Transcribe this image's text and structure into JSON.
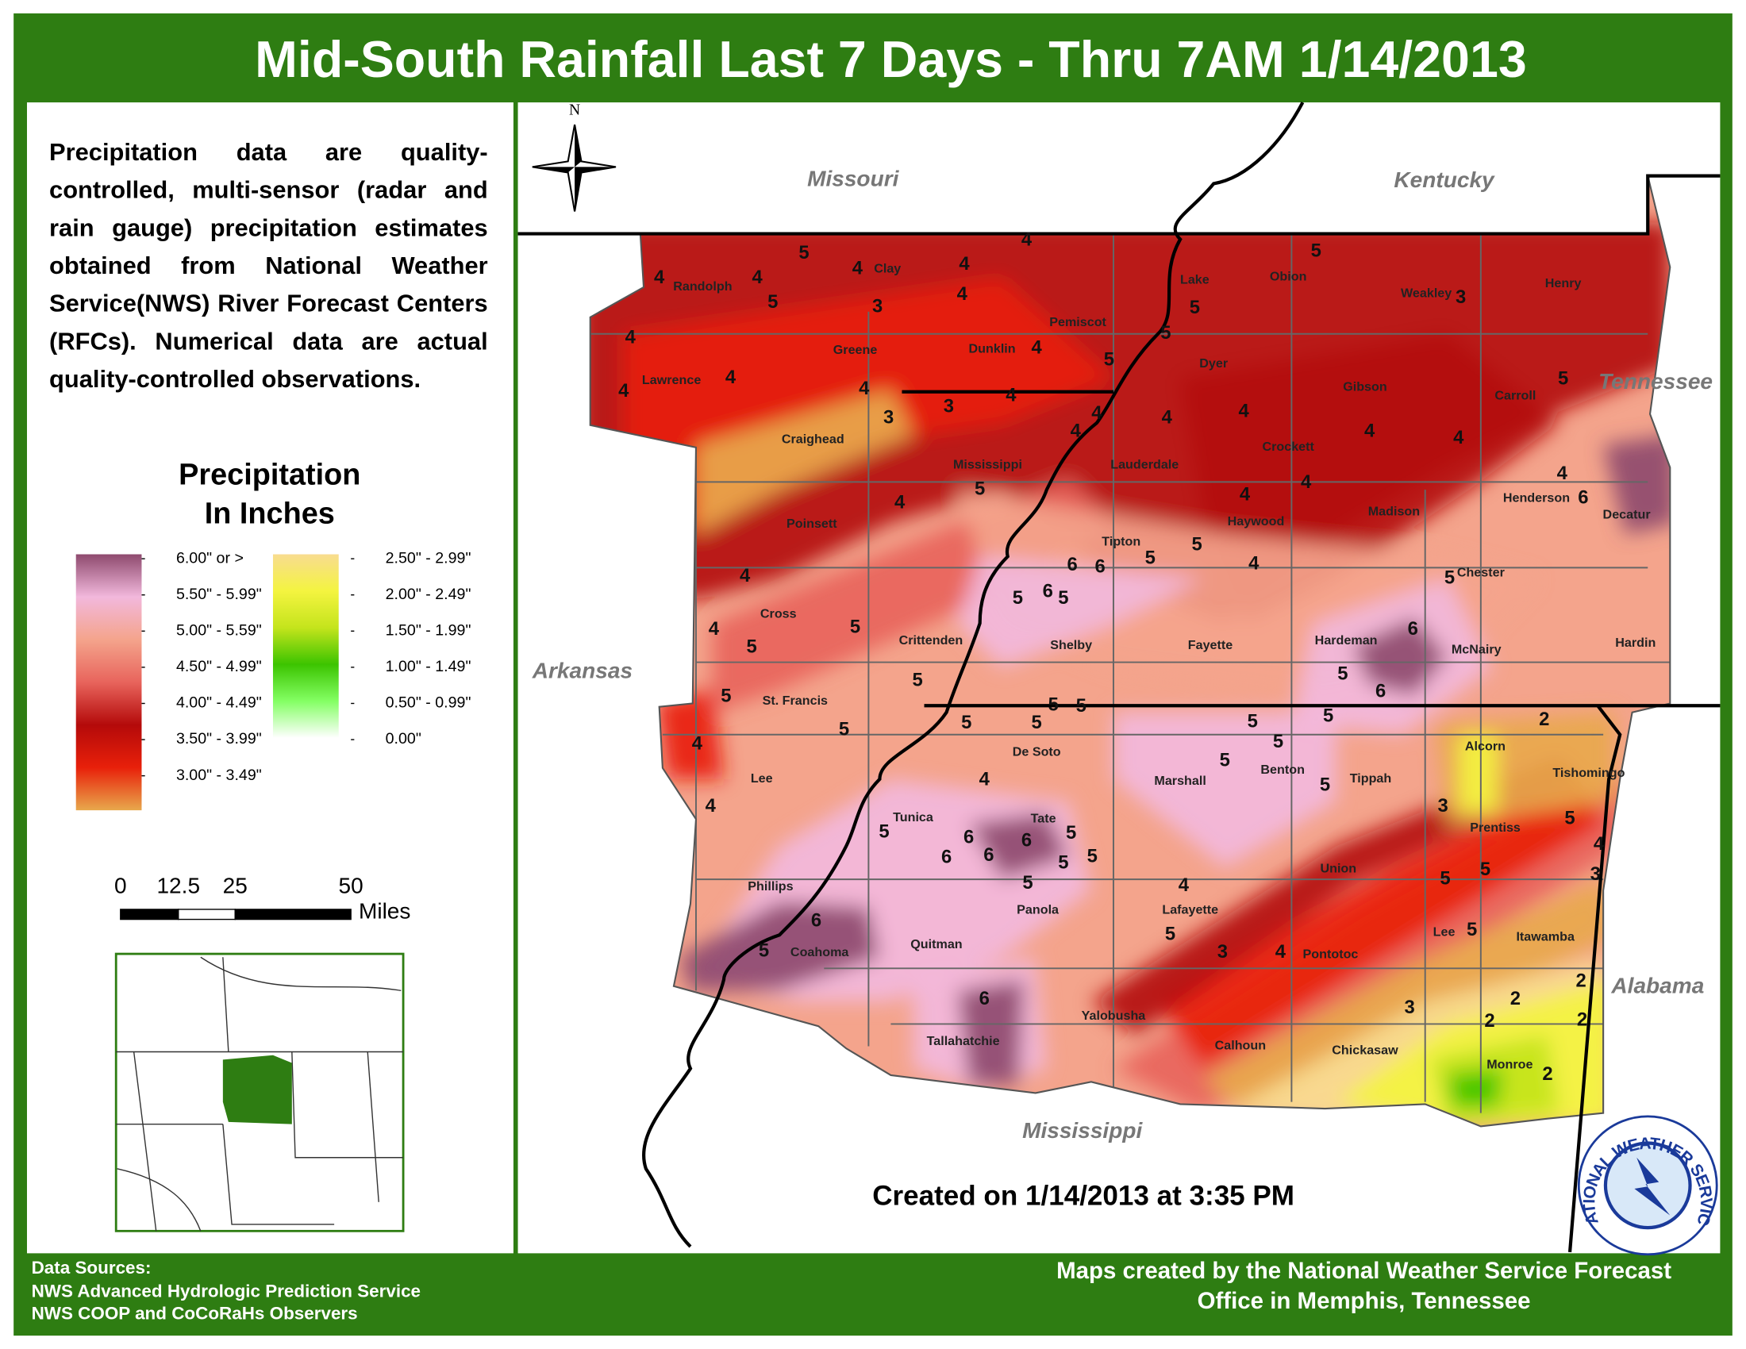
{
  "title": "Mid-South Rainfall Last 7 Days - Thru 7AM 1/14/2013",
  "description": "Precipitation data are quality-controlled, multi-sensor (radar and rain gauge) precipitation estimates obtained from National Weather Service(NWS) River Forecast Centers (RFCs). Numerical data are actual quality-controlled observations.",
  "legend": {
    "title": [
      "Precipitation",
      "In Inches"
    ],
    "entries": [
      {
        "label": "6.00\" or >",
        "color": "#8e4a6e"
      },
      {
        "label": "5.50\" - 5.99\"",
        "color": "#f2b8dc"
      },
      {
        "label": "5.00\" - 5.59\"",
        "color": "#f4a48c"
      },
      {
        "label": "4.50\" - 4.99\"",
        "color": "#e8645c"
      },
      {
        "label": "4.00\" - 4.49\"",
        "color": "#b40a0a"
      },
      {
        "label": "3.50\" - 3.99\"",
        "color": "#e8200a"
      },
      {
        "label": "3.00\" - 3.49\"",
        "color": "#e8a84c"
      },
      {
        "label": "2.50\" - 2.99\"",
        "color": "#f8dc90"
      },
      {
        "label": "2.00\" - 2.49\"",
        "color": "#f4f440"
      },
      {
        "label": "1.50\" - 1.99\"",
        "color": "#c4e41c"
      },
      {
        "label": "1.00\" - 1.49\"",
        "color": "#3cc400"
      },
      {
        "label": "0.50\" - 0.99\"",
        "color": "#84ff64"
      },
      {
        "label": "0.00\"",
        "color": "#ffffff"
      }
    ]
  },
  "scale_bar": {
    "ticks": [
      "0",
      "12.5",
      "25",
      "50"
    ],
    "unit": "Miles"
  },
  "north": "N",
  "states": [
    "Missouri",
    "Kentucky",
    "Tennessee",
    "Arkansas",
    "Alabama",
    "Mississippi"
  ],
  "counties": [
    "Randolph",
    "Clay",
    "Lawrence",
    "Greene",
    "Dunklin",
    "Pemiscot",
    "Lake",
    "Obion",
    "Weakley",
    "Henry",
    "Craighead",
    "Mississippi",
    "Dyer",
    "Gibson",
    "Carroll",
    "Lauderdale",
    "Crockett",
    "Henderson",
    "Decatur",
    "Poinsett",
    "Tipton",
    "Haywood",
    "Madison",
    "Chester",
    "Cross",
    "Crittenden",
    "Shelby",
    "Fayette",
    "Hardeman",
    "McNairy",
    "Hardin",
    "St. Francis",
    "De Soto",
    "Marshall",
    "Benton",
    "Tippah",
    "Alcorn",
    "Tishomingo",
    "Lee",
    "Tunica",
    "Tate",
    "Prentiss",
    "Phillips",
    "Union",
    "Panola",
    "Lafayette",
    "Lee",
    "Itawamba",
    "Coahoma",
    "Quitman",
    "Pontotoc",
    "Yalobusha",
    "Calhoun",
    "Chickasaw",
    "Monroe",
    "Tallahatchie"
  ],
  "contour_labels": [
    4,
    4,
    5,
    4,
    4,
    4,
    5,
    3,
    4,
    4,
    4,
    4,
    4,
    3,
    3,
    4,
    4,
    5,
    5,
    5,
    5,
    3,
    5,
    4,
    4,
    4,
    4,
    4,
    4,
    4,
    6,
    5,
    4,
    4,
    4,
    4,
    5,
    5,
    6,
    6,
    5,
    6,
    5,
    5,
    6,
    5,
    6,
    4,
    4,
    5,
    5,
    5,
    5,
    5,
    5,
    5,
    5,
    4,
    5,
    4,
    5,
    4,
    6,
    6,
    6,
    6,
    5,
    5,
    5,
    5,
    5,
    5,
    5,
    5,
    5,
    2,
    3,
    5,
    4,
    3,
    5,
    5,
    5,
    4,
    5,
    3,
    4,
    3,
    2,
    2,
    2,
    2,
    2,
    6,
    5,
    6
  ],
  "created": "Created on 1/14/2013 at 3:35 PM",
  "data_sources": {
    "heading": "Data Sources:",
    "lines": [
      "NWS Advanced Hydrologic Prediction Service",
      "NWS COOP and CoCoRaHs Observers"
    ]
  },
  "credit": [
    "Maps created by the National Weather Service Forecast",
    "Office in Memphis, Tennessee"
  ],
  "logo_text": "NATIONAL WEATHER SERVICE"
}
